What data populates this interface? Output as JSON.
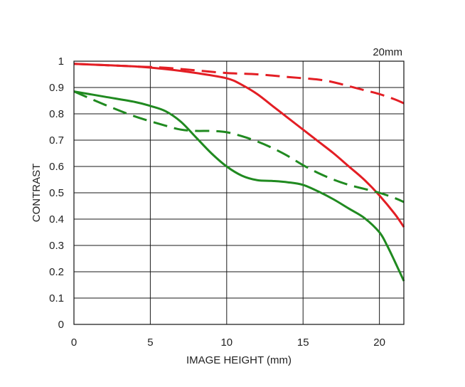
{
  "chart_data": {
    "type": "line",
    "title": "",
    "xlabel": "IMAGE HEIGHT (mm)",
    "ylabel": "CONTRAST",
    "xlim": [
      0,
      21.6
    ],
    "ylim": [
      0,
      1
    ],
    "grid": true,
    "xticks": [
      0,
      5,
      10,
      15,
      20
    ],
    "xtick_labels": [
      "0",
      "5",
      "10",
      "15",
      "20"
    ],
    "yticks": [
      0,
      0.1,
      0.2,
      0.3,
      0.4,
      0.5,
      0.6,
      0.7,
      0.8,
      0.9,
      1
    ],
    "ytick_labels": [
      "0",
      "0.1",
      "0.2",
      "0.3",
      "0.4",
      "0.5",
      "0.6",
      "0.7",
      "0.8",
      "0.9",
      "1"
    ],
    "annotations": [
      {
        "text": "20mm",
        "placement": "top-right"
      }
    ],
    "series": [
      {
        "color": "#e31e24",
        "dash": "solid",
        "points": [
          [
            0,
            0.99
          ],
          [
            2,
            0.985
          ],
          [
            4,
            0.98
          ],
          [
            6,
            0.97
          ],
          [
            8,
            0.955
          ],
          [
            10,
            0.935
          ],
          [
            11,
            0.91
          ],
          [
            12,
            0.875
          ],
          [
            13,
            0.83
          ],
          [
            14,
            0.785
          ],
          [
            15,
            0.74
          ],
          [
            16,
            0.695
          ],
          [
            17,
            0.65
          ],
          [
            18,
            0.6
          ],
          [
            19,
            0.55
          ],
          [
            20,
            0.49
          ],
          [
            21,
            0.42
          ],
          [
            21.6,
            0.37
          ]
        ]
      },
      {
        "color": "#e31e24",
        "dash": "dashed",
        "points": [
          [
            0,
            0.99
          ],
          [
            2,
            0.985
          ],
          [
            4,
            0.98
          ],
          [
            6,
            0.975
          ],
          [
            8,
            0.965
          ],
          [
            10,
            0.955
          ],
          [
            12,
            0.95
          ],
          [
            14,
            0.94
          ],
          [
            16,
            0.93
          ],
          [
            17,
            0.92
          ],
          [
            18,
            0.905
          ],
          [
            19,
            0.89
          ],
          [
            20,
            0.875
          ],
          [
            21,
            0.855
          ],
          [
            21.6,
            0.84
          ]
        ]
      },
      {
        "color": "#208a20",
        "dash": "solid",
        "points": [
          [
            0,
            0.885
          ],
          [
            2,
            0.865
          ],
          [
            4,
            0.845
          ],
          [
            5,
            0.83
          ],
          [
            6,
            0.81
          ],
          [
            7,
            0.77
          ],
          [
            8,
            0.71
          ],
          [
            9,
            0.65
          ],
          [
            10,
            0.6
          ],
          [
            11,
            0.565
          ],
          [
            12,
            0.548
          ],
          [
            13,
            0.545
          ],
          [
            14,
            0.54
          ],
          [
            15,
            0.53
          ],
          [
            16,
            0.505
          ],
          [
            17,
            0.475
          ],
          [
            18,
            0.44
          ],
          [
            19,
            0.405
          ],
          [
            20,
            0.35
          ],
          [
            20.5,
            0.3
          ],
          [
            21,
            0.24
          ],
          [
            21.6,
            0.165
          ]
        ]
      },
      {
        "color": "#208a20",
        "dash": "dashed",
        "points": [
          [
            0,
            0.885
          ],
          [
            2,
            0.835
          ],
          [
            4,
            0.79
          ],
          [
            6,
            0.755
          ],
          [
            7,
            0.74
          ],
          [
            8,
            0.735
          ],
          [
            9,
            0.735
          ],
          [
            10,
            0.73
          ],
          [
            11,
            0.715
          ],
          [
            12,
            0.695
          ],
          [
            13,
            0.67
          ],
          [
            14,
            0.64
          ],
          [
            15,
            0.605
          ],
          [
            16,
            0.575
          ],
          [
            17,
            0.55
          ],
          [
            18,
            0.53
          ],
          [
            19,
            0.515
          ],
          [
            20,
            0.5
          ],
          [
            21,
            0.48
          ],
          [
            21.6,
            0.465
          ]
        ]
      }
    ]
  }
}
